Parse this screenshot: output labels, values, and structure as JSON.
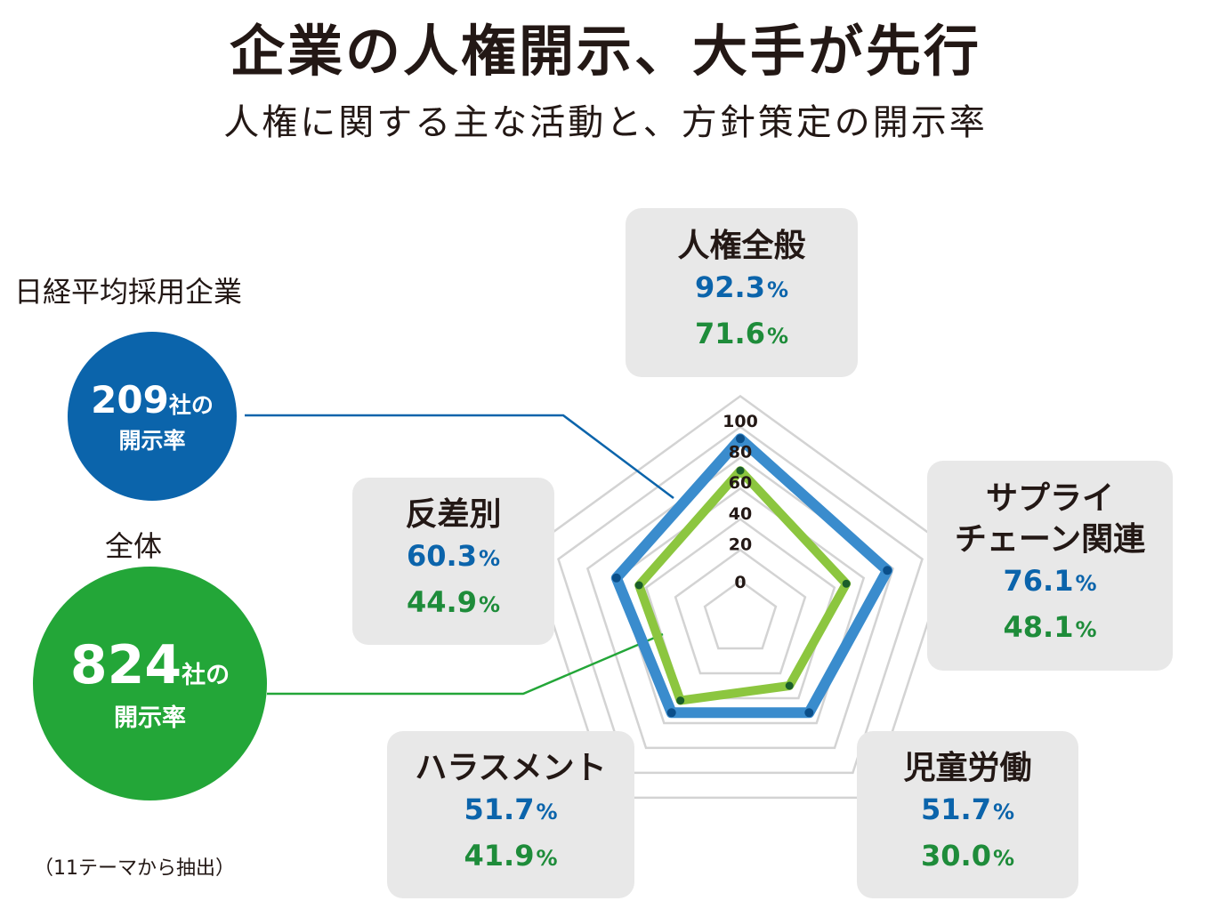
{
  "header": {
    "title": "企業の人権開示、大手が先行",
    "subtitle": "人権に関する主な活動と、方針策定の開示率"
  },
  "groups": {
    "nikkei": {
      "label": "日経平均採用企業",
      "count": "209",
      "unit": "社の",
      "rate_label": "開示率",
      "color": "#0b64ab"
    },
    "all": {
      "label": "全体",
      "count": "824",
      "unit": "社の",
      "rate_label": "開示率",
      "color": "#23a638"
    }
  },
  "note": "（11テーマから抽出）",
  "chart_data": {
    "type": "radar",
    "title": "人権に関する主な活動と、方針策定の開示率",
    "axes": [
      "人権全般",
      "サプライチェーン関連",
      "児童労働",
      "ハラスメント",
      "反差別"
    ],
    "axis_labels": [
      "人権全般",
      "サプライ\nチェーン関連",
      "児童労働",
      "ハラスメント",
      "反差別"
    ],
    "scale_ticks": [
      "0",
      "20",
      "40",
      "60",
      "80",
      "100"
    ],
    "range": [
      0,
      100
    ],
    "series": [
      {
        "name": "日経平均採用企業（209社）",
        "values": [
          92.3,
          76.1,
          51.7,
          51.7,
          60.3
        ],
        "color": "#3a8ccd"
      },
      {
        "name": "全体（824社）",
        "values": [
          71.6,
          48.1,
          30.0,
          41.9,
          44.9
        ],
        "color": "#8cc63f"
      }
    ],
    "value_labels": [
      {
        "nikkei": "92.3",
        "all": "71.6"
      },
      {
        "nikkei": "76.1",
        "all": "48.1"
      },
      {
        "nikkei": "51.7",
        "all": "30.0"
      },
      {
        "nikkei": "51.7",
        "all": "41.9"
      },
      {
        "nikkei": "60.3",
        "all": "44.9"
      }
    ],
    "percent_sign": "%"
  }
}
